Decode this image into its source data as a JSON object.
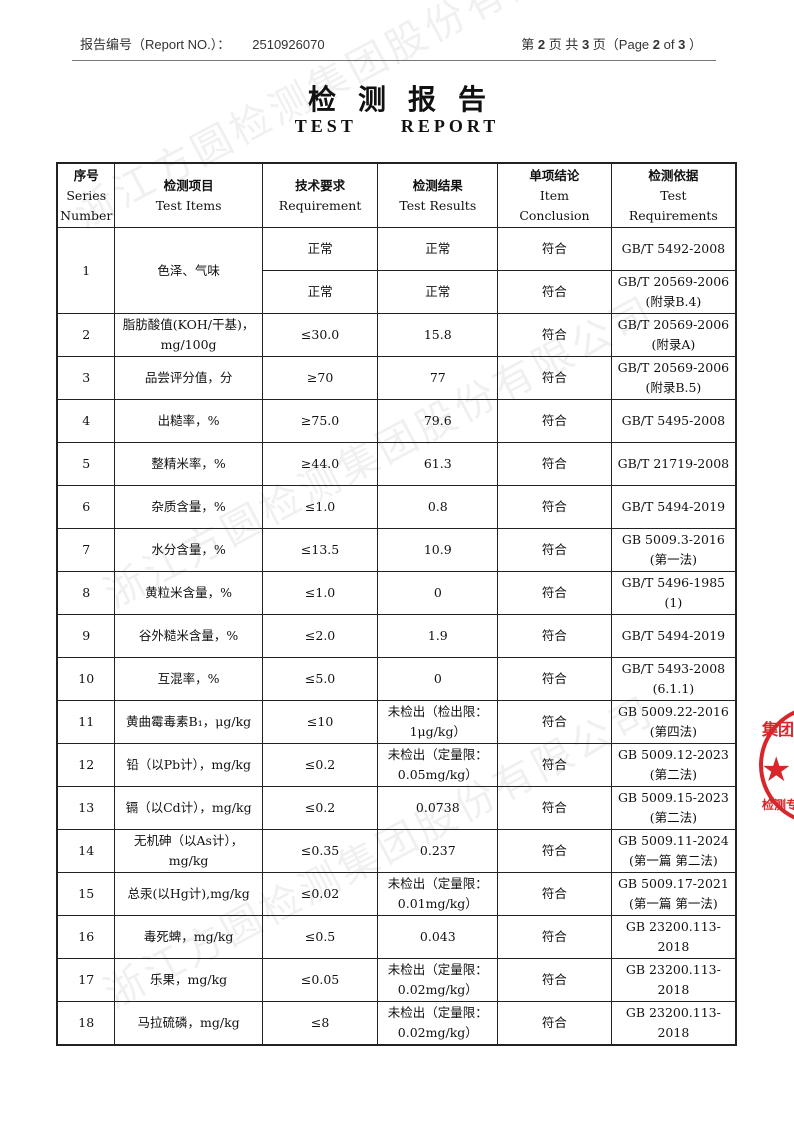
{
  "header": {
    "report_no_label": "报告编号（Report NO.）：",
    "report_no": "2510926070",
    "page_cn_prefix": "第",
    "page_current": "2",
    "page_cn_mid": "页 共",
    "page_total": "3",
    "page_cn_suffix": "页（Page",
    "page_en_of": "of",
    "page_close": "）"
  },
  "title": "检测报告",
  "subtitle": [
    "TEST",
    "REPORT"
  ],
  "watermark": "浙江方圆检测集团股份有限公司",
  "stamp": {
    "text_top": "集团股",
    "text_bottom": "检测专",
    "color": "#d8262a"
  },
  "table": {
    "columns": [
      {
        "cn": "序号",
        "en": [
          "Series",
          "Number"
        ]
      },
      {
        "cn": "检测项目",
        "en": [
          "Test Items"
        ]
      },
      {
        "cn": "技术要求",
        "en": [
          "Requirement"
        ]
      },
      {
        "cn": "检测结果",
        "en": [
          "Test Results"
        ]
      },
      {
        "cn": "单项结论",
        "en": [
          "Item",
          "Conclusion"
        ]
      },
      {
        "cn": "检测依据",
        "en": [
          "Test",
          "Requirements"
        ]
      }
    ],
    "rows": [
      {
        "no": "1",
        "item": "色泽、气味",
        "sub": [
          {
            "req": "正常",
            "result": "正常",
            "concl": "符合",
            "basis": "GB/T 5492-2008"
          },
          {
            "req": "正常",
            "result": "正常",
            "concl": "符合",
            "basis": "GB/T 20569-2006 (附录B.4)"
          }
        ]
      },
      {
        "no": "2",
        "item": "脂肪酸值(KOH/干基)，mg/100g",
        "req": "≤30.0",
        "result": "15.8",
        "concl": "符合",
        "basis": "GB/T 20569-2006 (附录A)"
      },
      {
        "no": "3",
        "item": "品尝评分值，分",
        "req": "≥70",
        "result": "77",
        "concl": "符合",
        "basis": "GB/T 20569-2006 (附录B.5)"
      },
      {
        "no": "4",
        "item": "出糙率，%",
        "req": "≥75.0",
        "result": "79.6",
        "concl": "符合",
        "basis": "GB/T 5495-2008"
      },
      {
        "no": "5",
        "item": "整精米率，%",
        "req": "≥44.0",
        "result": "61.3",
        "concl": "符合",
        "basis": "GB/T 21719-2008"
      },
      {
        "no": "6",
        "item": "杂质含量，%",
        "req": "≤1.0",
        "result": "0.8",
        "concl": "符合",
        "basis": "GB/T 5494-2019"
      },
      {
        "no": "7",
        "item": "水分含量，%",
        "req": "≤13.5",
        "result": "10.9",
        "concl": "符合",
        "basis": "GB 5009.3-2016 (第一法)"
      },
      {
        "no": "8",
        "item": "黄粒米含量，%",
        "req": "≤1.0",
        "result": "0",
        "concl": "符合",
        "basis": "GB/T 5496-1985 (1)"
      },
      {
        "no": "9",
        "item": "谷外糙米含量，%",
        "req": "≤2.0",
        "result": "1.9",
        "concl": "符合",
        "basis": "GB/T 5494-2019"
      },
      {
        "no": "10",
        "item": "互混率，%",
        "req": "≤5.0",
        "result": "0",
        "concl": "符合",
        "basis": "GB/T 5493-2008 (6.1.1)"
      },
      {
        "no": "11",
        "item": "黄曲霉毒素B₁，μg/kg",
        "req": "≤10",
        "result": "未检出（检出限：1μg/kg）",
        "concl": "符合",
        "basis": "GB 5009.22-2016 (第四法)"
      },
      {
        "no": "12",
        "item": "铅（以Pb计），mg/kg",
        "req": "≤0.2",
        "result": "未检出（定量限：0.05mg/kg）",
        "concl": "符合",
        "basis": "GB 5009.12-2023 (第二法)"
      },
      {
        "no": "13",
        "item": "镉（以Cd计），mg/kg",
        "req": "≤0.2",
        "result": "0.0738",
        "concl": "符合",
        "basis": "GB 5009.15-2023 (第二法)"
      },
      {
        "no": "14",
        "item": "无机砷（以As计），mg/kg",
        "req": "≤0.35",
        "result": "0.237",
        "concl": "符合",
        "basis": "GB 5009.11-2024 (第一篇 第二法)"
      },
      {
        "no": "15",
        "item": "总汞(以Hg计),mg/kg",
        "req": "≤0.02",
        "result": "未检出（定量限：0.01mg/kg）",
        "concl": "符合",
        "basis": "GB 5009.17-2021 (第一篇 第一法)"
      },
      {
        "no": "16",
        "item": "毒死蜱，mg/kg",
        "req": "≤0.5",
        "result": "0.043",
        "concl": "符合",
        "basis": "GB 23200.113-2018"
      },
      {
        "no": "17",
        "item": "乐果，mg/kg",
        "req": "≤0.05",
        "result": "未检出（定量限：0.02mg/kg）",
        "concl": "符合",
        "basis": "GB 23200.113-2018"
      },
      {
        "no": "18",
        "item": "马拉硫磷，mg/kg",
        "req": "≤8",
        "result": "未检出（定量限：0.02mg/kg）",
        "concl": "符合",
        "basis": "GB 23200.113-2018"
      }
    ]
  }
}
